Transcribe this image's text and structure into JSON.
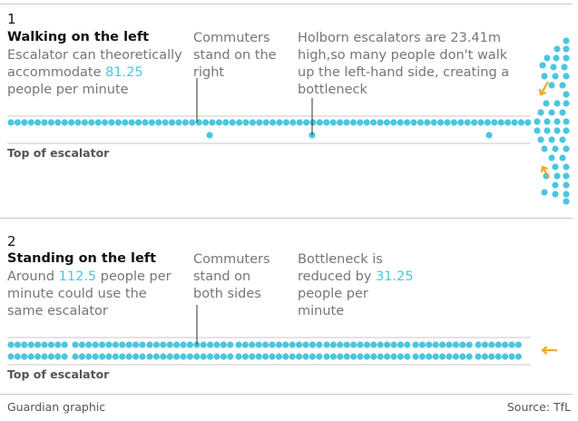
{
  "section1": {
    "number": "1",
    "heading": "Walking on the left",
    "intro_pre": "Escalator can theoretically accommodate ",
    "intro_value": "81.25",
    "intro_post": " people per minute",
    "note_commuters": "Commuters stand on the right",
    "note_holborn": "Holborn escalators are 23.41m high,so many people don't walk up the left-hand side, creating a bottleneck",
    "top_label": "Top of escalator"
  },
  "section2": {
    "number": "2",
    "heading": "Standing on the left",
    "intro_pre": "Around ",
    "intro_value": "112.5",
    "intro_post": " people per minute could use the same escalator",
    "note_commuters": "Commuters stand on both sides",
    "note_bottleneck_pre": "Bottleneck is reduced by ",
    "note_bottleneck_value": "31.25",
    "note_bottleneck_post": " people per minute",
    "top_label": "Top of escalator"
  },
  "footer": {
    "credit": "Guardian graphic",
    "source": "Source: TfL"
  },
  "colors": {
    "dot": "#4bc6df",
    "arrow": "#f5a623",
    "rule": "#c8c8c8",
    "text": "#767676"
  }
}
